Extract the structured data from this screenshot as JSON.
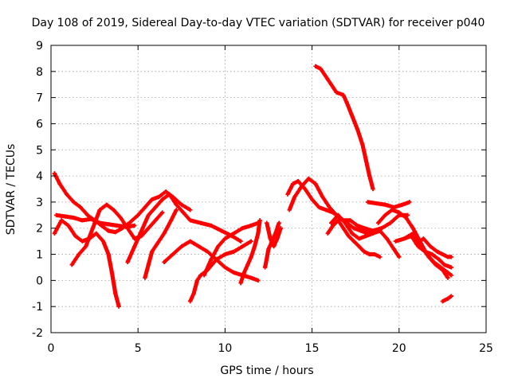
{
  "chart_data": {
    "type": "scatter",
    "title": "Day 108 of 2019, Sidereal Day-to-day VTEC variation (SDTVAR) for receiver p040",
    "xlabel": "GPS time / hours",
    "ylabel": "SDTVAR / TECUs",
    "xlim": [
      0,
      25
    ],
    "ylim": [
      -2,
      9
    ],
    "xticks": [
      0,
      5,
      10,
      15,
      20,
      25
    ],
    "yticks": [
      -2,
      -1,
      0,
      1,
      2,
      3,
      4,
      5,
      6,
      7,
      8,
      9
    ],
    "grid": true,
    "marker": "+",
    "marker_color": "#ff0000",
    "series": [
      {
        "name": "s1",
        "points": [
          [
            0.2,
            4.1
          ],
          [
            0.5,
            3.7
          ],
          [
            0.9,
            3.3
          ],
          [
            1.3,
            3.0
          ],
          [
            1.7,
            2.8
          ],
          [
            2.1,
            2.5
          ],
          [
            2.5,
            2.3
          ],
          [
            2.9,
            2.1
          ],
          [
            3.3,
            1.9
          ],
          [
            3.7,
            1.85
          ],
          [
            4.1,
            2.0
          ],
          [
            4.5,
            2.2
          ],
          [
            5.0,
            2.5
          ],
          [
            5.4,
            2.8
          ],
          [
            5.8,
            3.1
          ],
          [
            6.2,
            3.2
          ],
          [
            6.6,
            3.4
          ],
          [
            7.0,
            3.2
          ],
          [
            7.5,
            2.9
          ],
          [
            8.0,
            2.7
          ]
        ]
      },
      {
        "name": "s2",
        "points": [
          [
            0.3,
            2.5
          ],
          [
            0.8,
            2.45
          ],
          [
            1.3,
            2.4
          ],
          [
            1.8,
            2.3
          ],
          [
            2.3,
            2.35
          ],
          [
            2.8,
            2.2
          ],
          [
            3.3,
            2.15
          ],
          [
            3.8,
            2.1
          ],
          [
            4.3,
            2.05
          ],
          [
            4.8,
            2.1
          ]
        ]
      },
      {
        "name": "s3",
        "points": [
          [
            0.2,
            1.8
          ],
          [
            0.6,
            2.3
          ],
          [
            1.0,
            2.1
          ],
          [
            1.4,
            1.7
          ],
          [
            1.8,
            1.5
          ],
          [
            2.2,
            1.6
          ],
          [
            2.6,
            1.8
          ],
          [
            3.0,
            1.5
          ],
          [
            3.3,
            1.0
          ],
          [
            3.5,
            0.3
          ],
          [
            3.7,
            -0.5
          ],
          [
            3.9,
            -1.0
          ]
        ]
      },
      {
        "name": "s4",
        "points": [
          [
            1.2,
            0.6
          ],
          [
            1.6,
            1.0
          ],
          [
            2.0,
            1.3
          ],
          [
            2.4,
            2.0
          ],
          [
            2.8,
            2.7
          ],
          [
            3.2,
            2.9
          ],
          [
            3.6,
            2.7
          ],
          [
            4.0,
            2.4
          ],
          [
            4.4,
            2.0
          ],
          [
            4.8,
            1.6
          ],
          [
            5.2,
            1.7
          ],
          [
            5.6,
            2.0
          ],
          [
            6.0,
            2.3
          ],
          [
            6.4,
            2.6
          ]
        ]
      },
      {
        "name": "s5",
        "points": [
          [
            4.4,
            0.7
          ],
          [
            4.8,
            1.3
          ],
          [
            5.2,
            1.9
          ],
          [
            5.6,
            2.5
          ],
          [
            6.0,
            2.8
          ],
          [
            6.4,
            3.1
          ],
          [
            6.8,
            3.3
          ],
          [
            7.2,
            2.9
          ],
          [
            7.6,
            2.6
          ],
          [
            8.0,
            2.3
          ],
          [
            8.6,
            2.2
          ],
          [
            9.2,
            2.1
          ],
          [
            9.8,
            1.9
          ],
          [
            10.4,
            1.7
          ],
          [
            10.9,
            1.5
          ]
        ]
      },
      {
        "name": "s6",
        "points": [
          [
            5.4,
            0.1
          ],
          [
            5.6,
            0.6
          ],
          [
            5.8,
            1.1
          ],
          [
            6.1,
            1.4
          ],
          [
            6.5,
            1.8
          ],
          [
            6.9,
            2.3
          ],
          [
            7.2,
            2.7
          ]
        ]
      },
      {
        "name": "s7",
        "points": [
          [
            6.5,
            0.7
          ],
          [
            7.0,
            1.0
          ],
          [
            7.5,
            1.3
          ],
          [
            8.0,
            1.5
          ],
          [
            8.5,
            1.3
          ],
          [
            9.0,
            1.1
          ],
          [
            9.5,
            0.8
          ],
          [
            10.0,
            0.5
          ],
          [
            10.5,
            0.3
          ],
          [
            11.0,
            0.2
          ],
          [
            11.5,
            0.1
          ],
          [
            11.9,
            0.0
          ]
        ]
      },
      {
        "name": "s8",
        "points": [
          [
            8.0,
            -0.8
          ],
          [
            8.2,
            -0.5
          ],
          [
            8.4,
            0.0
          ],
          [
            8.6,
            0.2
          ],
          [
            9.0,
            0.4
          ],
          [
            9.5,
            0.8
          ],
          [
            10.0,
            1.0
          ],
          [
            10.5,
            1.1
          ],
          [
            11.0,
            1.3
          ],
          [
            11.5,
            1.5
          ]
        ]
      },
      {
        "name": "s9",
        "points": [
          [
            8.8,
            0.2
          ],
          [
            9.2,
            0.8
          ],
          [
            9.6,
            1.3
          ],
          [
            10.0,
            1.6
          ],
          [
            10.5,
            1.8
          ],
          [
            11.0,
            2.0
          ],
          [
            11.5,
            2.1
          ],
          [
            11.9,
            2.2
          ]
        ]
      },
      {
        "name": "s10",
        "points": [
          [
            10.9,
            -0.1
          ],
          [
            11.1,
            0.3
          ],
          [
            11.3,
            0.6
          ],
          [
            11.5,
            0.9
          ],
          [
            11.7,
            1.3
          ],
          [
            11.9,
            1.8
          ],
          [
            12.0,
            2.3
          ]
        ]
      },
      {
        "name": "s11",
        "points": [
          [
            12.3,
            0.5
          ],
          [
            12.5,
            1.2
          ],
          [
            12.7,
            1.5
          ],
          [
            12.9,
            1.8
          ],
          [
            13.1,
            2.2
          ]
        ]
      },
      {
        "name": "s12",
        "points": [
          [
            12.4,
            2.2
          ],
          [
            12.6,
            1.6
          ],
          [
            12.8,
            1.3
          ],
          [
            13.0,
            1.6
          ],
          [
            13.2,
            2.0
          ]
        ]
      },
      {
        "name": "s13",
        "points": [
          [
            13.6,
            3.3
          ],
          [
            13.9,
            3.7
          ],
          [
            14.2,
            3.8
          ],
          [
            14.6,
            3.5
          ],
          [
            15.0,
            3.1
          ],
          [
            15.4,
            2.8
          ],
          [
            15.8,
            2.7
          ],
          [
            16.2,
            2.6
          ],
          [
            16.6,
            2.4
          ],
          [
            17.0,
            2.2
          ],
          [
            17.4,
            2.0
          ],
          [
            17.8,
            1.9
          ],
          [
            18.2,
            1.8
          ],
          [
            18.6,
            1.9
          ],
          [
            19.0,
            2.0
          ]
        ]
      },
      {
        "name": "s14",
        "points": [
          [
            13.7,
            2.7
          ],
          [
            14.0,
            3.2
          ],
          [
            14.4,
            3.6
          ],
          [
            14.8,
            3.9
          ],
          [
            15.2,
            3.7
          ],
          [
            15.6,
            3.2
          ],
          [
            16.0,
            2.8
          ],
          [
            16.4,
            2.5
          ],
          [
            16.8,
            2.3
          ],
          [
            17.2,
            2.3
          ],
          [
            17.6,
            2.1
          ],
          [
            18.0,
            2.0
          ],
          [
            18.5,
            1.9
          ],
          [
            19.0,
            2.0
          ],
          [
            19.5,
            2.2
          ],
          [
            20.0,
            2.5
          ],
          [
            20.5,
            2.5
          ]
        ]
      },
      {
        "name": "s15",
        "points": [
          [
            15.2,
            8.2
          ],
          [
            15.5,
            8.1
          ],
          [
            15.8,
            7.8
          ],
          [
            16.1,
            7.5
          ],
          [
            16.4,
            7.2
          ],
          [
            16.8,
            7.1
          ],
          [
            17.0,
            6.8
          ],
          [
            17.3,
            6.3
          ],
          [
            17.6,
            5.8
          ],
          [
            17.9,
            5.2
          ],
          [
            18.1,
            4.6
          ],
          [
            18.3,
            4.0
          ],
          [
            18.5,
            3.5
          ]
        ]
      },
      {
        "name": "s16",
        "points": [
          [
            15.9,
            1.8
          ],
          [
            16.2,
            2.1
          ],
          [
            16.5,
            2.3
          ],
          [
            16.8,
            2.0
          ],
          [
            17.1,
            1.7
          ],
          [
            17.4,
            1.5
          ],
          [
            17.7,
            1.3
          ],
          [
            18.0,
            1.1
          ],
          [
            18.3,
            1.0
          ],
          [
            18.6,
            1.0
          ],
          [
            18.9,
            0.9
          ]
        ]
      },
      {
        "name": "s17",
        "points": [
          [
            16.1,
            2.2
          ],
          [
            16.5,
            2.5
          ],
          [
            16.9,
            2.2
          ],
          [
            17.3,
            1.8
          ],
          [
            17.7,
            1.6
          ],
          [
            18.1,
            1.7
          ],
          [
            18.5,
            1.8
          ],
          [
            18.9,
            1.9
          ],
          [
            19.3,
            1.6
          ],
          [
            19.7,
            1.2
          ],
          [
            20.0,
            0.9
          ]
        ]
      },
      {
        "name": "s18",
        "points": [
          [
            18.2,
            3.0
          ],
          [
            18.7,
            2.95
          ],
          [
            19.2,
            2.9
          ],
          [
            19.7,
            2.8
          ],
          [
            20.2,
            2.9
          ],
          [
            20.6,
            3.0
          ]
        ]
      },
      {
        "name": "s19",
        "points": [
          [
            18.8,
            2.2
          ],
          [
            19.2,
            2.5
          ],
          [
            19.6,
            2.7
          ],
          [
            20.0,
            2.6
          ],
          [
            20.4,
            2.4
          ],
          [
            20.8,
            2.0
          ],
          [
            21.2,
            1.5
          ],
          [
            21.6,
            1.0
          ],
          [
            22.0,
            0.7
          ],
          [
            22.4,
            0.5
          ],
          [
            22.8,
            0.3
          ],
          [
            23.0,
            0.2
          ]
        ]
      },
      {
        "name": "s20",
        "points": [
          [
            19.8,
            1.5
          ],
          [
            20.3,
            1.6
          ],
          [
            20.8,
            1.8
          ],
          [
            21.3,
            1.3
          ],
          [
            21.7,
            0.9
          ],
          [
            22.1,
            0.6
          ],
          [
            22.5,
            0.4
          ],
          [
            22.8,
            0.1
          ]
        ]
      },
      {
        "name": "s21",
        "points": [
          [
            20.3,
            1.6
          ],
          [
            20.7,
            1.7
          ],
          [
            21.1,
            1.3
          ],
          [
            21.5,
            1.1
          ],
          [
            21.9,
            1.0
          ],
          [
            22.3,
            0.8
          ],
          [
            22.6,
            0.6
          ],
          [
            23.0,
            0.5
          ]
        ]
      },
      {
        "name": "s22",
        "points": [
          [
            21.0,
            1.4
          ],
          [
            21.4,
            1.6
          ],
          [
            21.8,
            1.3
          ],
          [
            22.2,
            1.1
          ],
          [
            22.5,
            1.0
          ],
          [
            22.8,
            0.9
          ],
          [
            23.0,
            0.9
          ]
        ]
      },
      {
        "name": "s23",
        "points": [
          [
            22.5,
            -0.8
          ],
          [
            22.8,
            -0.7
          ],
          [
            23.0,
            -0.6
          ]
        ]
      }
    ]
  }
}
